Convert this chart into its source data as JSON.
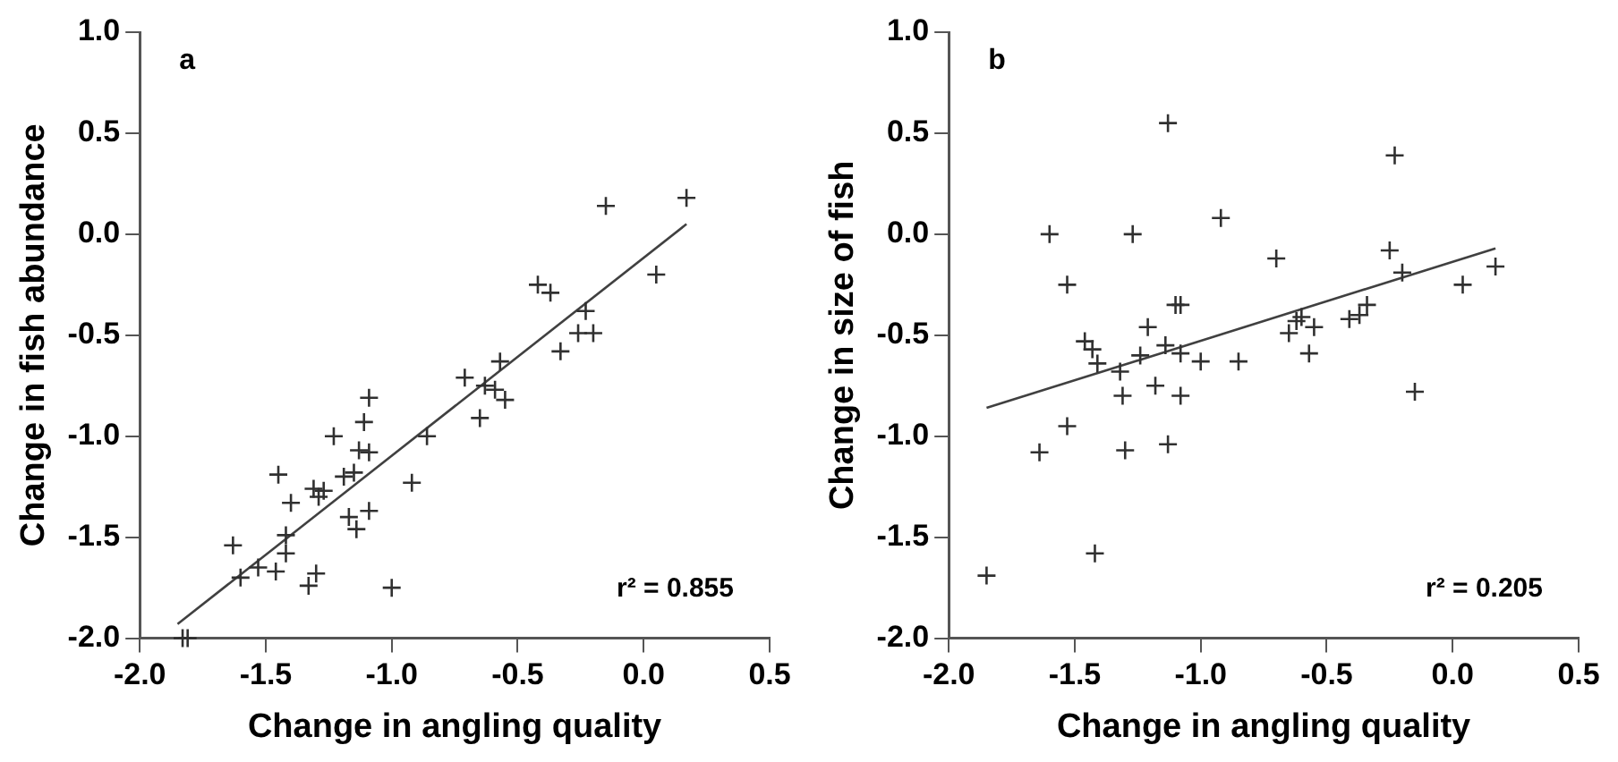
{
  "chart_data": [
    {
      "type": "scatter",
      "xlabel": "Change in angling quality",
      "ylabel": "Change in fish abundance",
      "annotations": [
        "a",
        "r² = 0.855"
      ],
      "grid": false,
      "legend": false,
      "xlim": [
        -2,
        0.5
      ],
      "xticks": [
        {
          "value": -2,
          "label": "-2.0"
        },
        {
          "value": -1.5,
          "label": "-1.5"
        },
        {
          "value": -1,
          "label": "-1.0"
        },
        {
          "value": -0.5,
          "label": "-0.5"
        },
        {
          "value": 0,
          "label": "0.0"
        },
        {
          "value": 0.5,
          "label": "0.5"
        }
      ],
      "ylim": [
        -2,
        1
      ],
      "yticks": [
        {
          "value": -2,
          "label": "-2.0"
        },
        {
          "value": -1.5,
          "label": "-1.5"
        },
        {
          "value": -1,
          "label": "-1.0"
        },
        {
          "value": -0.5,
          "label": "-0.5"
        },
        {
          "value": 0,
          "label": "0.0"
        },
        {
          "value": 0.5,
          "label": "0.5"
        },
        {
          "value": 1,
          "label": "1.0"
        }
      ],
      "series": [
        {
          "marker": "cross",
          "color": "#303030",
          "x": [
            -1.83,
            -1.81,
            -1.63,
            -1.6,
            -1.53,
            -1.46,
            -1.45,
            -1.4,
            -1.42,
            -1.42,
            -1.33,
            -1.3,
            -1.31,
            -1.29,
            -1.27,
            -1.23,
            -1.19,
            -1.17,
            -1.14,
            -1.15,
            -1.13,
            -1.11,
            -1.09,
            -1.09,
            -1.09,
            -1.0,
            -0.92,
            -0.86,
            -0.71,
            -0.63,
            -0.65,
            -0.59,
            -0.57,
            -0.55,
            -0.42,
            -0.37,
            -0.33,
            -0.23,
            -0.26,
            -0.2,
            0.05,
            -0.15,
            0.17
          ],
          "values": [
            -2.0,
            -2.0,
            -1.54,
            -1.7,
            -1.65,
            -1.67,
            -1.19,
            -1.33,
            -1.49,
            -1.58,
            -1.74,
            -1.68,
            -1.26,
            -1.3,
            -1.27,
            -1.0,
            -1.2,
            -1.4,
            -1.46,
            -1.18,
            -1.07,
            -0.93,
            -0.81,
            -1.08,
            -1.37,
            -1.75,
            -1.23,
            -1.0,
            -0.71,
            -0.75,
            -0.91,
            -0.77,
            -0.63,
            -0.82,
            -0.25,
            -0.29,
            -0.58,
            -0.38,
            -0.49,
            -0.49,
            -0.2,
            0.14,
            0.18
          ]
        },
        {
          "type": "line",
          "color": "#404040",
          "x": [
            -1.85,
            0.17
          ],
          "values": [
            -1.93,
            0.05
          ]
        }
      ]
    },
    {
      "type": "scatter",
      "xlabel": "Change in angling quality",
      "ylabel": "Change in size of fish",
      "annotations": [
        "b",
        "r² = 0.205"
      ],
      "grid": false,
      "legend": false,
      "xlim": [
        -2,
        0.5
      ],
      "xticks": [
        {
          "value": -2,
          "label": "-2.0"
        },
        {
          "value": -1.5,
          "label": "-1.5"
        },
        {
          "value": -1,
          "label": "-1.0"
        },
        {
          "value": -0.5,
          "label": "-0.5"
        },
        {
          "value": 0,
          "label": "0.0"
        },
        {
          "value": 0.5,
          "label": "0.5"
        }
      ],
      "ylim": [
        -2,
        1
      ],
      "yticks": [
        {
          "value": -2,
          "label": "-2.0"
        },
        {
          "value": -1.5,
          "label": "-1.5"
        },
        {
          "value": -1,
          "label": "-1.0"
        },
        {
          "value": -0.5,
          "label": "-0.5"
        },
        {
          "value": 0,
          "label": "0.0"
        },
        {
          "value": 0.5,
          "label": "0.5"
        },
        {
          "value": 1,
          "label": "1.0"
        }
      ],
      "series": [
        {
          "marker": "cross",
          "color": "#303030",
          "x": [
            -1.85,
            -1.64,
            -1.6,
            -1.53,
            -1.53,
            -1.46,
            -1.43,
            -1.41,
            -1.42,
            -1.32,
            -1.31,
            -1.3,
            -1.27,
            -1.24,
            -1.21,
            -1.18,
            -1.14,
            -1.13,
            -1.13,
            -1.1,
            -1.08,
            -1.08,
            -1.08,
            -1.0,
            -0.92,
            -0.85,
            -0.7,
            -0.65,
            -0.62,
            -0.6,
            -0.57,
            -0.55,
            -0.41,
            -0.34,
            -0.37,
            -0.25,
            -0.23,
            -0.2,
            -0.15,
            0.04,
            0.17
          ],
          "values": [
            -1.69,
            -1.08,
            0.0,
            -0.25,
            -0.95,
            -0.53,
            -0.57,
            -0.64,
            -1.58,
            -0.68,
            -0.8,
            -1.07,
            0.0,
            -0.6,
            -0.46,
            -0.75,
            -0.55,
            0.55,
            -1.04,
            -0.35,
            -0.35,
            -0.59,
            -0.8,
            -0.63,
            0.08,
            -0.63,
            -0.12,
            -0.49,
            -0.43,
            -0.41,
            -0.59,
            -0.46,
            -0.42,
            -0.35,
            -0.4,
            -0.08,
            0.39,
            -0.19,
            -0.78,
            -0.25,
            -0.16
          ]
        },
        {
          "type": "line",
          "color": "#404040",
          "x": [
            -1.85,
            0.17
          ],
          "values": [
            -0.86,
            -0.07
          ]
        }
      ]
    }
  ]
}
